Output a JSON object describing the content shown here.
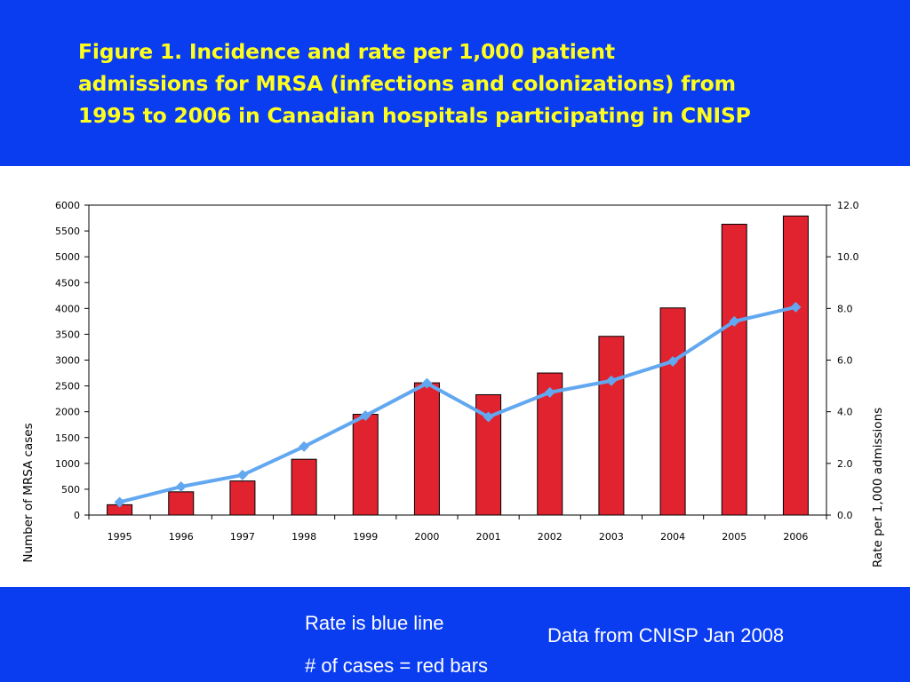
{
  "slide": {
    "title_lines": [
      "Figure 1.  Incidence and rate per 1,000 patient",
      "admissions for MRSA (infections and colonizations) from",
      "1995 to 2006 in Canadian hospitals participating in CNISP"
    ],
    "footer": {
      "rate_note": "Rate is blue line",
      "cases_note": "# of cases = red bars",
      "source_note": "Data from CNISP Jan 2008"
    },
    "colors": {
      "background": "#0a3cf0",
      "title": "#ffff1e",
      "bars": "#e0232f",
      "line": "#62a8f0"
    }
  },
  "chart_data": {
    "type": "bar",
    "categories": [
      "1995",
      "1996",
      "1997",
      "1998",
      "1999",
      "2000",
      "2001",
      "2002",
      "2003",
      "2004",
      "2005",
      "2006"
    ],
    "series": [
      {
        "name": "# of cases",
        "type": "bar",
        "axis": "left",
        "values": [
          200,
          450,
          660,
          1080,
          1950,
          2560,
          2330,
          2750,
          3460,
          4010,
          5630,
          5790
        ]
      },
      {
        "name": "Rate",
        "type": "line",
        "axis": "right",
        "values": [
          0.5,
          1.1,
          1.55,
          2.65,
          3.85,
          5.1,
          3.8,
          4.75,
          5.2,
          5.95,
          7.5,
          8.05
        ]
      }
    ],
    "ylabel": "Number of MRSA cases",
    "y2label": "Rate per 1,000 admissions",
    "ylim": [
      0,
      6000
    ],
    "y2lim": [
      0,
      12
    ],
    "yticks": [
      "0",
      "500",
      "1000",
      "1500",
      "2000",
      "2500",
      "3000",
      "3500",
      "4000",
      "4500",
      "5000",
      "5500",
      "6000"
    ],
    "y2ticks": [
      "0.0",
      "2.0",
      "4.0",
      "6.0",
      "8.0",
      "10.0",
      "12.0"
    ],
    "grid": false,
    "legend": "none"
  }
}
